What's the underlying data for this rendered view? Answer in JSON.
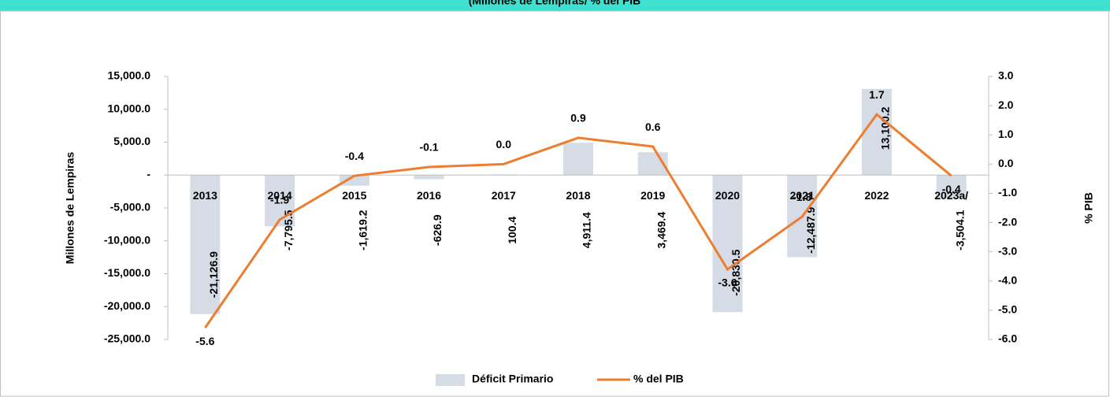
{
  "chart_data": {
    "type": "bar_line",
    "subtitle": "(Millones de Lempiras/ % del PIB",
    "ylabel": "Millones de Lempiras",
    "y2label": "% PIB",
    "categories": [
      "2013",
      "2014",
      "2015",
      "2016",
      "2017",
      "2018",
      "2019",
      "2020",
      "2021",
      "2022",
      "2023a/"
    ],
    "series": [
      {
        "name": "Déficit Primario",
        "type": "bar",
        "color": "#d6dce5",
        "values": [
          -21126.9,
          -7795.5,
          -1619.2,
          -626.9,
          100.4,
          4911.4,
          3469.4,
          -20830.5,
          -12487.9,
          13100.2,
          -3504.1
        ],
        "value_labels": [
          "-21,126.9",
          "-7,795.5",
          "-1,619.2",
          "-626.9",
          "100.4",
          "4,911.4",
          "3,469.4",
          "-20,830.5",
          "-12,487.9",
          "13,100.2",
          "-3,504.1"
        ]
      },
      {
        "name": "% del PIB",
        "type": "line",
        "axis": "y2",
        "color": "#ed7d31",
        "values": [
          -5.6,
          -1.9,
          -0.4,
          -0.1,
          0.0,
          0.9,
          0.6,
          -3.6,
          -1.8,
          1.7,
          -0.4
        ],
        "value_labels": [
          "-5.6",
          "-1.9",
          "-0.4",
          "-0.1",
          "0.0",
          "0.9",
          "0.6",
          "-3.6",
          "-1.8",
          "1.7",
          "-0.4"
        ]
      }
    ],
    "ylim": [
      -25000,
      15000
    ],
    "yticks": [
      {
        "value": -25000,
        "label": "-25,000.0"
      },
      {
        "value": -20000,
        "label": "-20,000.0"
      },
      {
        "value": -15000,
        "label": "-15,000.0"
      },
      {
        "value": -10000,
        "label": "-10,000.0"
      },
      {
        "value": -5000,
        "label": "-5,000.0"
      },
      {
        "value": 0,
        "label": "-"
      },
      {
        "value": 5000,
        "label": "5,000.0"
      },
      {
        "value": 10000,
        "label": "10,000.0"
      },
      {
        "value": 15000,
        "label": "15,000.0"
      }
    ],
    "y2lim": [
      -6,
      3
    ],
    "y2ticks": [
      {
        "value": -6,
        "label": "-6.0"
      },
      {
        "value": -5,
        "label": "-5.0"
      },
      {
        "value": -4,
        "label": "-4.0"
      },
      {
        "value": -3,
        "label": "-3.0"
      },
      {
        "value": -2,
        "label": "-2.0"
      },
      {
        "value": -1,
        "label": "-1.0"
      },
      {
        "value": 0,
        "label": "0.0"
      },
      {
        "value": 1,
        "label": "1.0"
      },
      {
        "value": 2,
        "label": "2.0"
      },
      {
        "value": 3,
        "label": "3.0"
      }
    ],
    "legend": "bottom"
  }
}
